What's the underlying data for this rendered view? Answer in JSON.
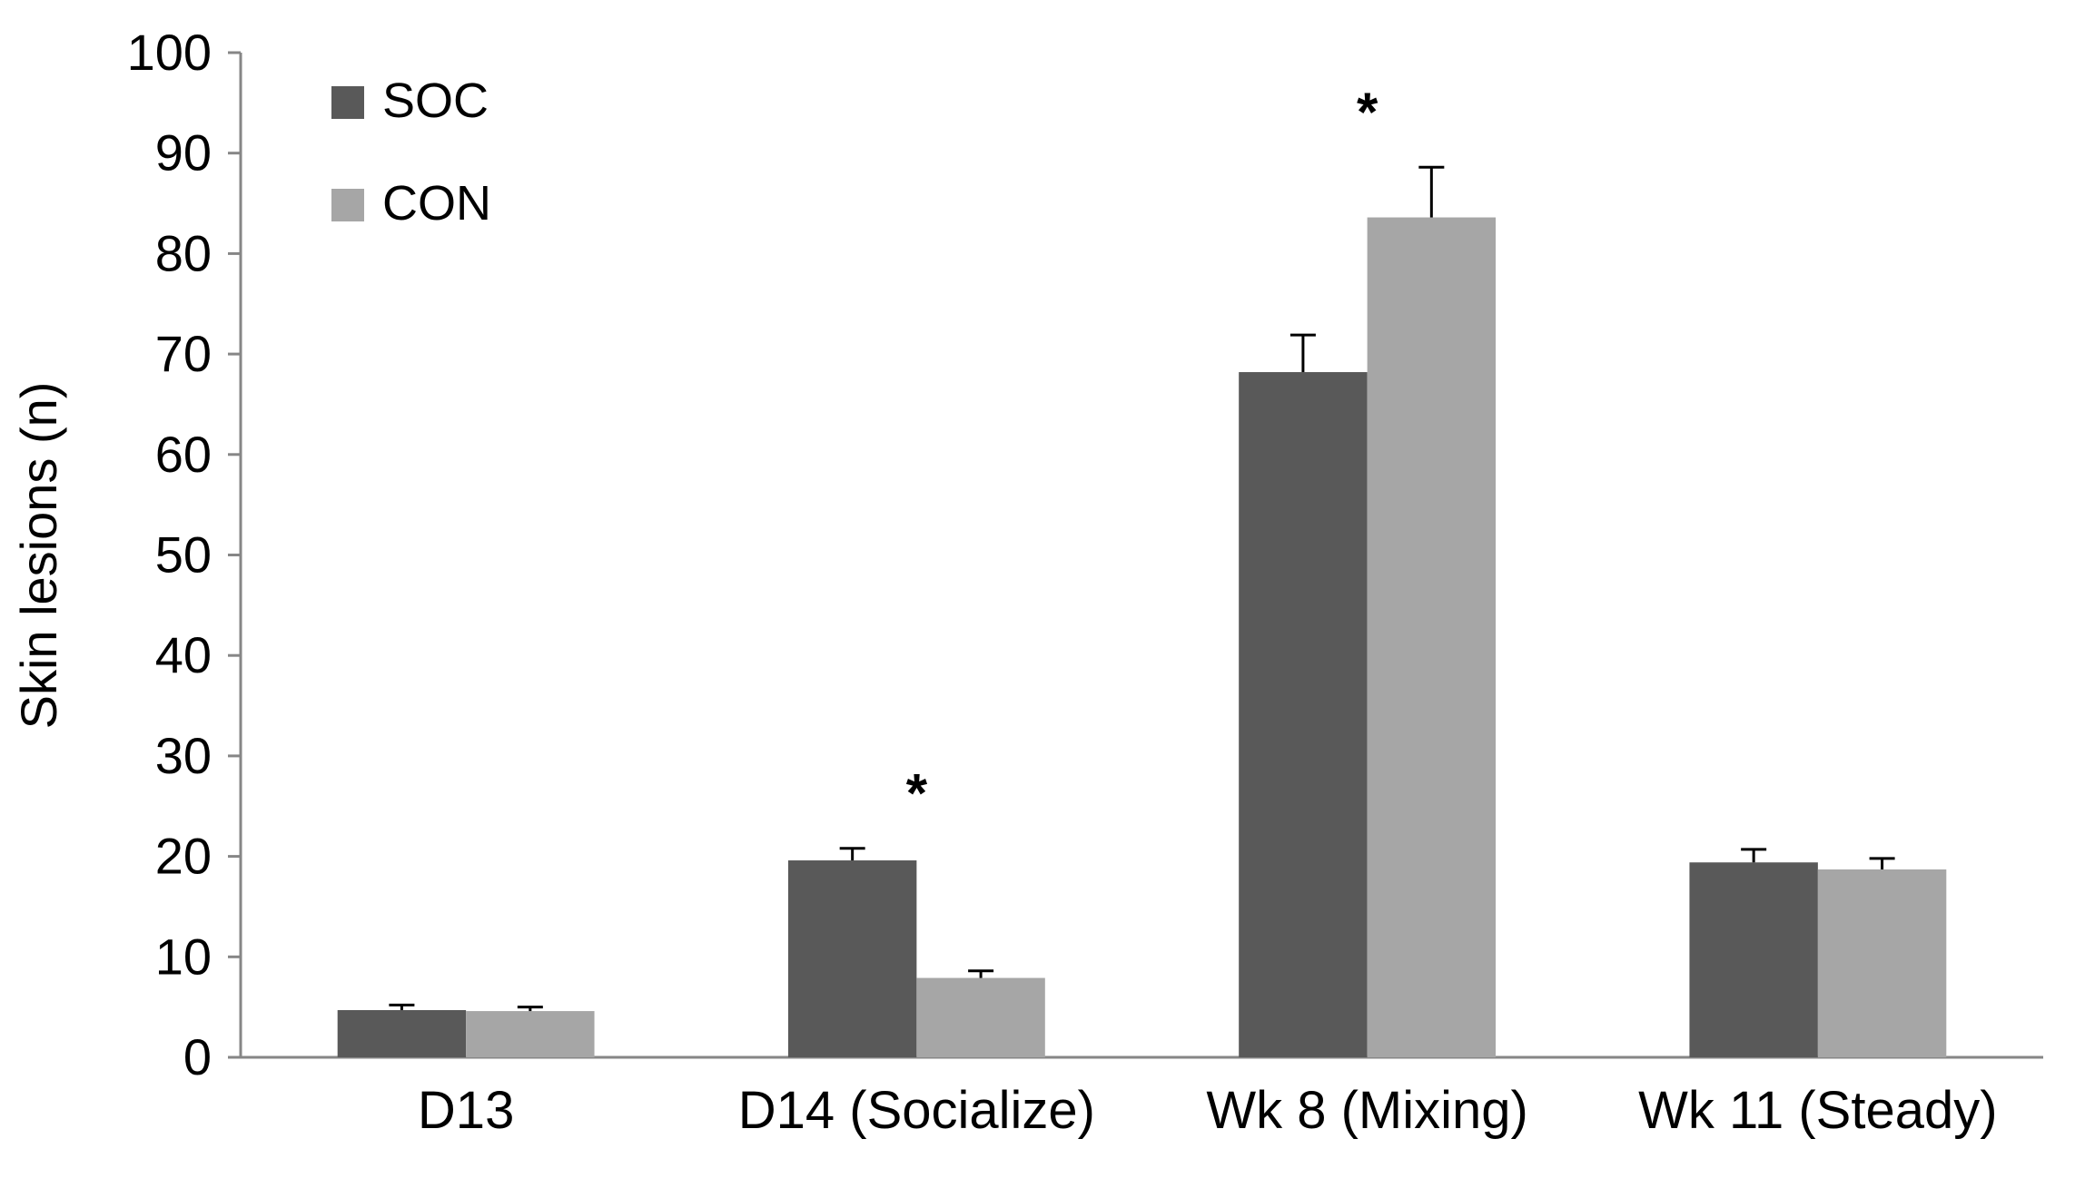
{
  "chart_data": {
    "type": "bar",
    "title": "",
    "xlabel": "",
    "ylabel": "Skin lesions (n)",
    "ylim": [
      0,
      100
    ],
    "yticks": [
      0,
      10,
      20,
      30,
      40,
      50,
      60,
      70,
      80,
      90,
      100
    ],
    "grid": false,
    "legend_position": "top-left",
    "categories": [
      "D13",
      "D14 (Socialize)",
      "Wk 8 (Mixing)",
      "Wk 11 (Steady)"
    ],
    "series": [
      {
        "name": "SOC",
        "color": "#595959",
        "values": [
          4.7,
          19.6,
          68.2,
          19.4
        ],
        "errors": [
          0.5,
          1.2,
          3.7,
          1.3
        ]
      },
      {
        "name": "CON",
        "color": "#a6a6a6",
        "values": [
          4.6,
          7.9,
          83.6,
          18.7
        ],
        "errors": [
          0.4,
          0.7,
          5.0,
          1.1
        ]
      }
    ],
    "annotations": [
      {
        "category_index": 1,
        "text": "*"
      },
      {
        "category_index": 2,
        "text": "*"
      }
    ]
  }
}
